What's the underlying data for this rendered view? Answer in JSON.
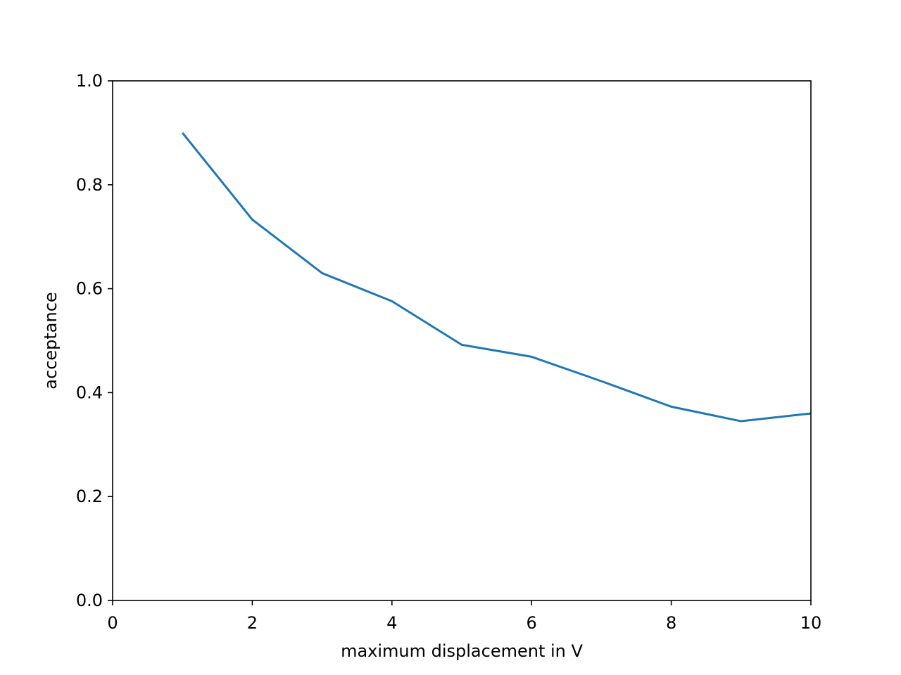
{
  "chart_data": {
    "type": "line",
    "title": "",
    "xlabel": "maximum displacement in V",
    "ylabel": "acceptance",
    "xlim": [
      0,
      10
    ],
    "ylim": [
      0.0,
      1.0
    ],
    "xticks": [
      0,
      2,
      4,
      6,
      8,
      10
    ],
    "xtick_labels": [
      "0",
      "2",
      "4",
      "6",
      "8",
      "10"
    ],
    "yticks": [
      0.0,
      0.2,
      0.4,
      0.6,
      0.8,
      1.0
    ],
    "ytick_labels": [
      "0.0",
      "0.2",
      "0.4",
      "0.6",
      "0.8",
      "1.0"
    ],
    "grid": false,
    "series": [
      {
        "color": "#1f77b4",
        "x": [
          1,
          2,
          3,
          4,
          5,
          6,
          7,
          8,
          9,
          10
        ],
        "y": [
          0.9,
          0.733,
          0.63,
          0.576,
          0.492,
          0.469,
          0.422,
          0.373,
          0.345,
          0.36
        ]
      }
    ]
  }
}
